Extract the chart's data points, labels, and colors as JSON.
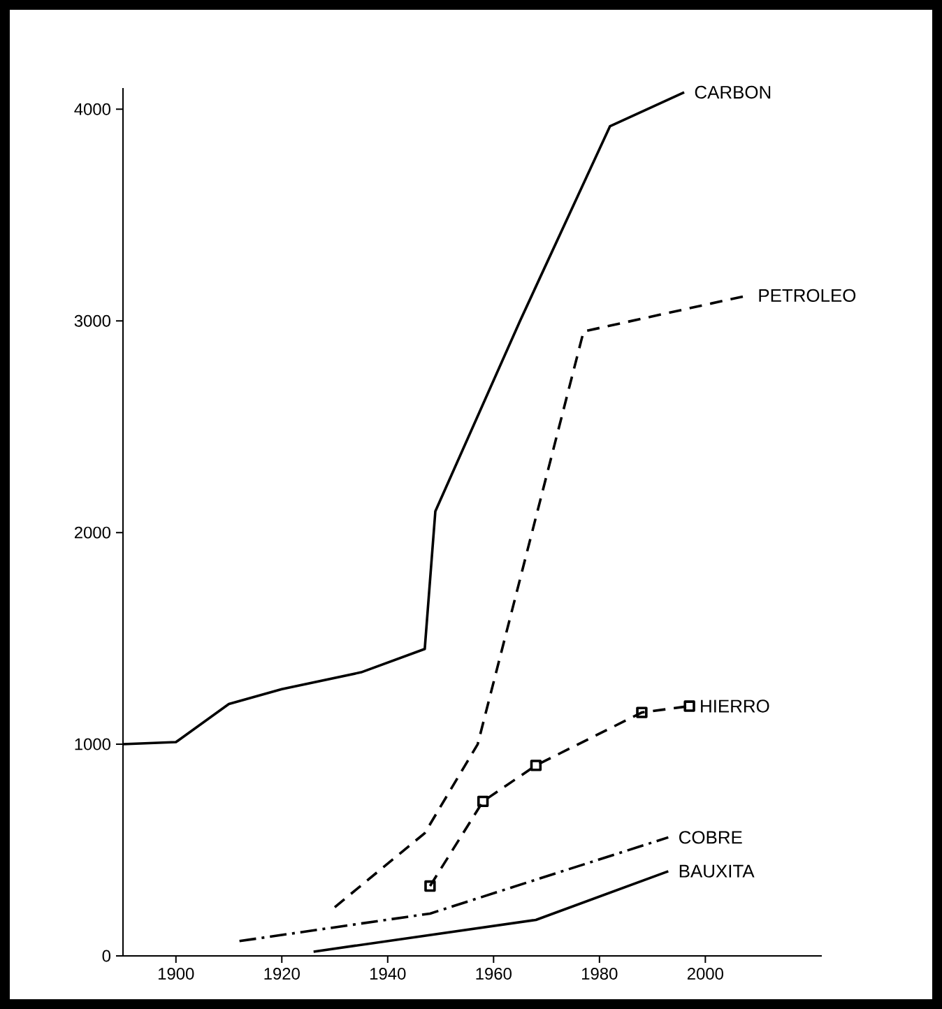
{
  "chart_data": {
    "type": "line",
    "xlim": [
      1890,
      2022
    ],
    "xticks": [
      1900,
      1920,
      1940,
      1960,
      1980,
      2000
    ],
    "ylim": [
      0,
      4100
    ],
    "yticks": [
      0,
      1000,
      2000,
      3000,
      4000
    ],
    "series": [
      {
        "name": "CARBON",
        "color": "#000000",
        "line_style": "solid",
        "marker": "none",
        "x": [
          1890,
          1900,
          1910,
          1920,
          1935,
          1947,
          1949,
          1965,
          1982,
          1996
        ],
        "values": [
          1000,
          1010,
          1190,
          1260,
          1340,
          1450,
          2100,
          3000,
          3920,
          4080
        ]
      },
      {
        "name": "PETROLEO",
        "color": "#000000",
        "line_style": "dashed",
        "marker": "none",
        "x": [
          1930,
          1947,
          1957,
          1977,
          2008
        ],
        "values": [
          230,
          580,
          1000,
          2950,
          3120
        ]
      },
      {
        "name": "HIERRO",
        "color": "#000000",
        "line_style": "dashed",
        "marker": "square",
        "x": [
          1948,
          1958,
          1968,
          1988,
          1997
        ],
        "values": [
          330,
          730,
          900,
          1150,
          1180
        ]
      },
      {
        "name": "COBRE",
        "color": "#000000",
        "line_style": "dashdot",
        "marker": "none",
        "x": [
          1912,
          1948,
          1993
        ],
        "values": [
          70,
          200,
          560
        ]
      },
      {
        "name": "BAUXITA",
        "color": "#000000",
        "line_style": "solid",
        "marker": "none",
        "x": [
          1926,
          1968,
          1993
        ],
        "values": [
          20,
          170,
          400
        ]
      }
    ]
  }
}
